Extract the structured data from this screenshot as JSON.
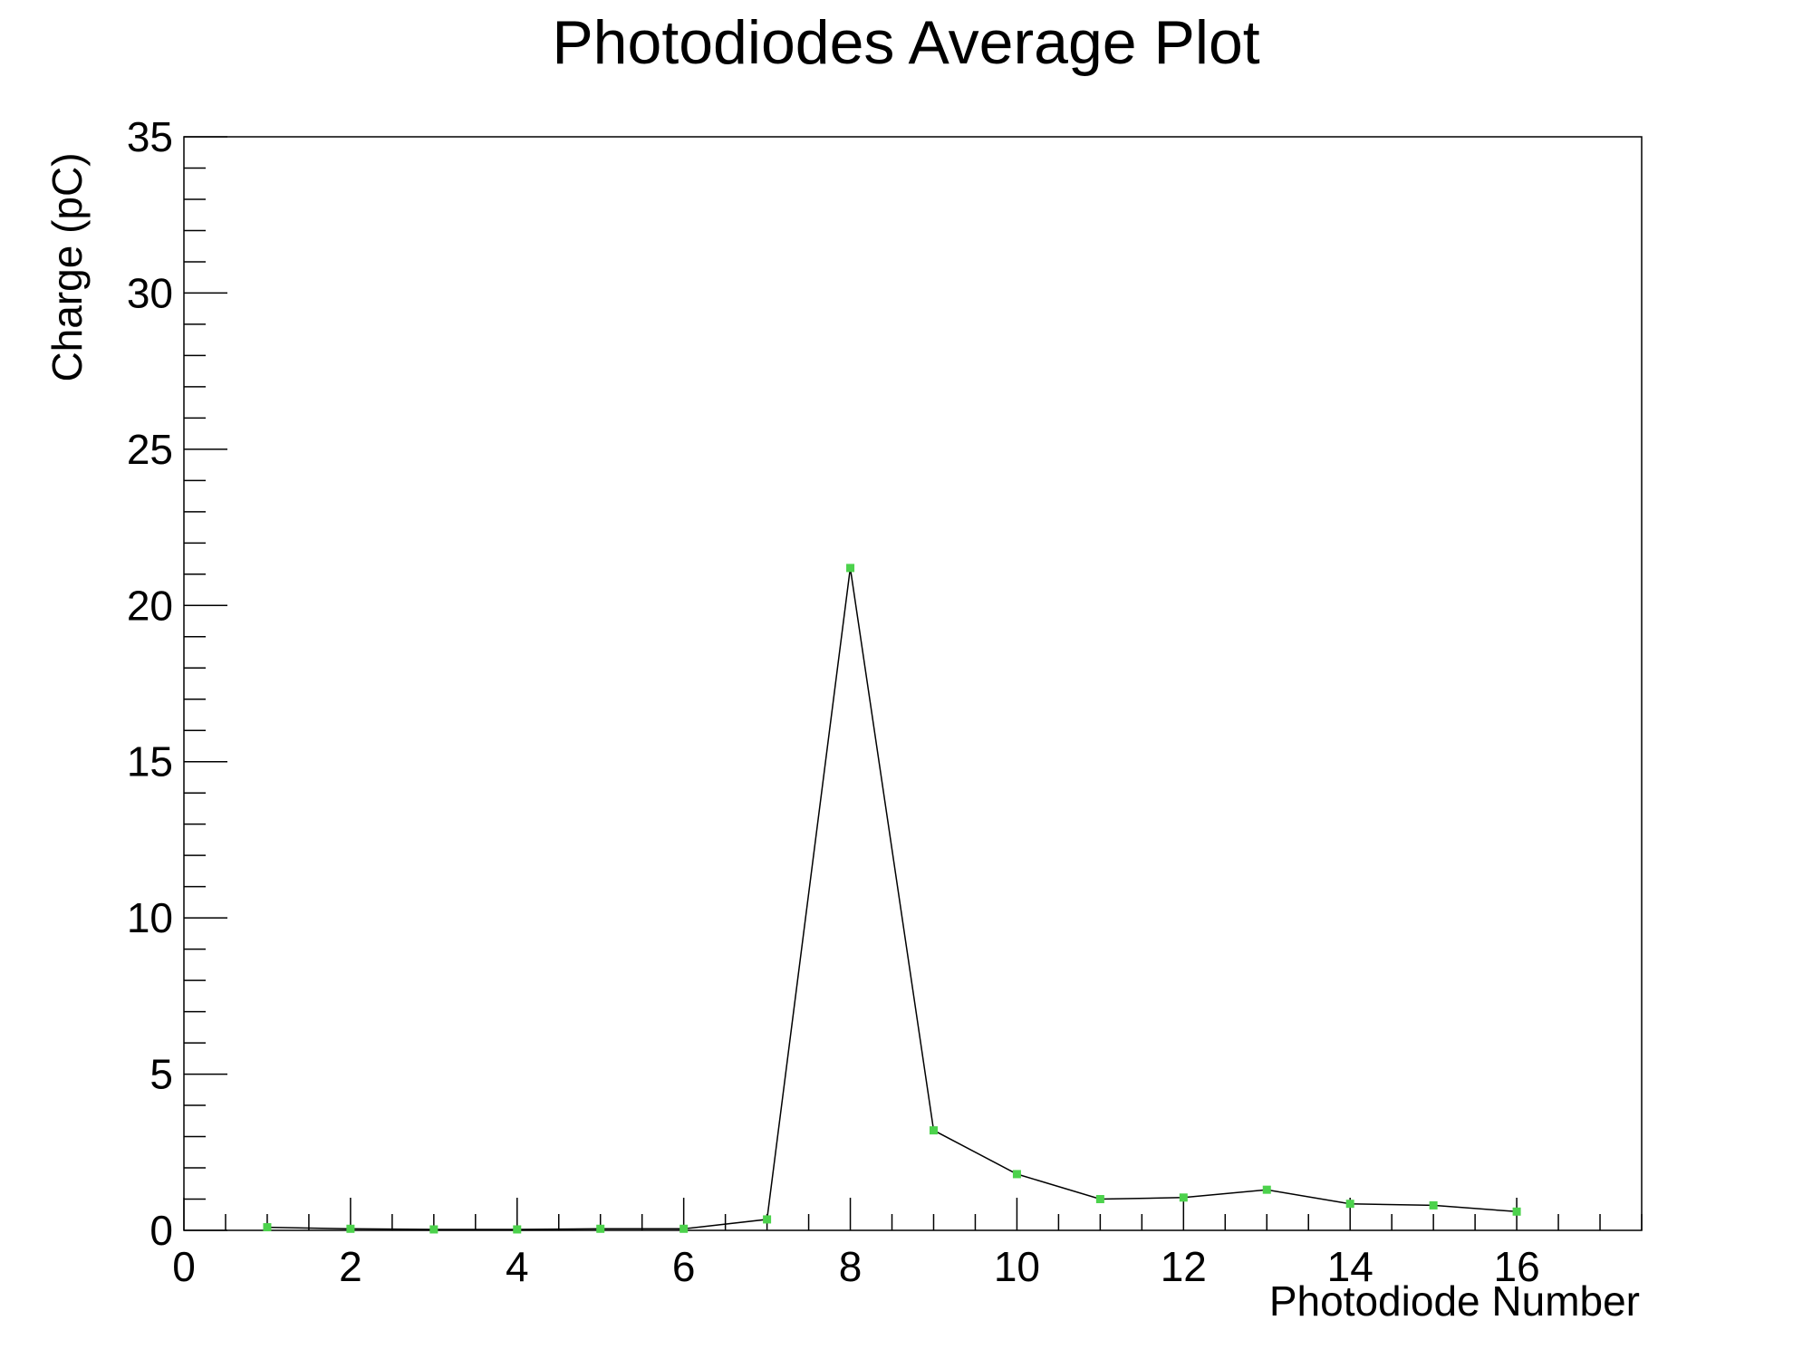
{
  "chart_data": {
    "type": "line",
    "title": "Photodiodes Average Plot",
    "xlabel": "Photodiode Number",
    "ylabel": "Charge (pC)",
    "xlim": [
      0,
      17.5
    ],
    "ylim": [
      0,
      35
    ],
    "x_major_ticks": [
      0,
      2,
      4,
      6,
      8,
      10,
      12,
      14,
      16
    ],
    "x_minor_step": 0.5,
    "y_major_ticks": [
      0,
      5,
      10,
      15,
      20,
      25,
      30,
      35
    ],
    "y_minor_step": 1,
    "grid": false,
    "line_color": "#000000",
    "marker_color": "#4cd24c",
    "series": [
      {
        "x": [
          1,
          2,
          3,
          4,
          5,
          6,
          7,
          8,
          9,
          10,
          11,
          12,
          13,
          14,
          15,
          16
        ],
        "values": [
          0.1,
          0.05,
          0.03,
          0.03,
          0.05,
          0.05,
          0.35,
          21.2,
          3.2,
          1.8,
          1.0,
          1.05,
          1.3,
          0.85,
          0.8,
          0.6
        ]
      }
    ]
  }
}
